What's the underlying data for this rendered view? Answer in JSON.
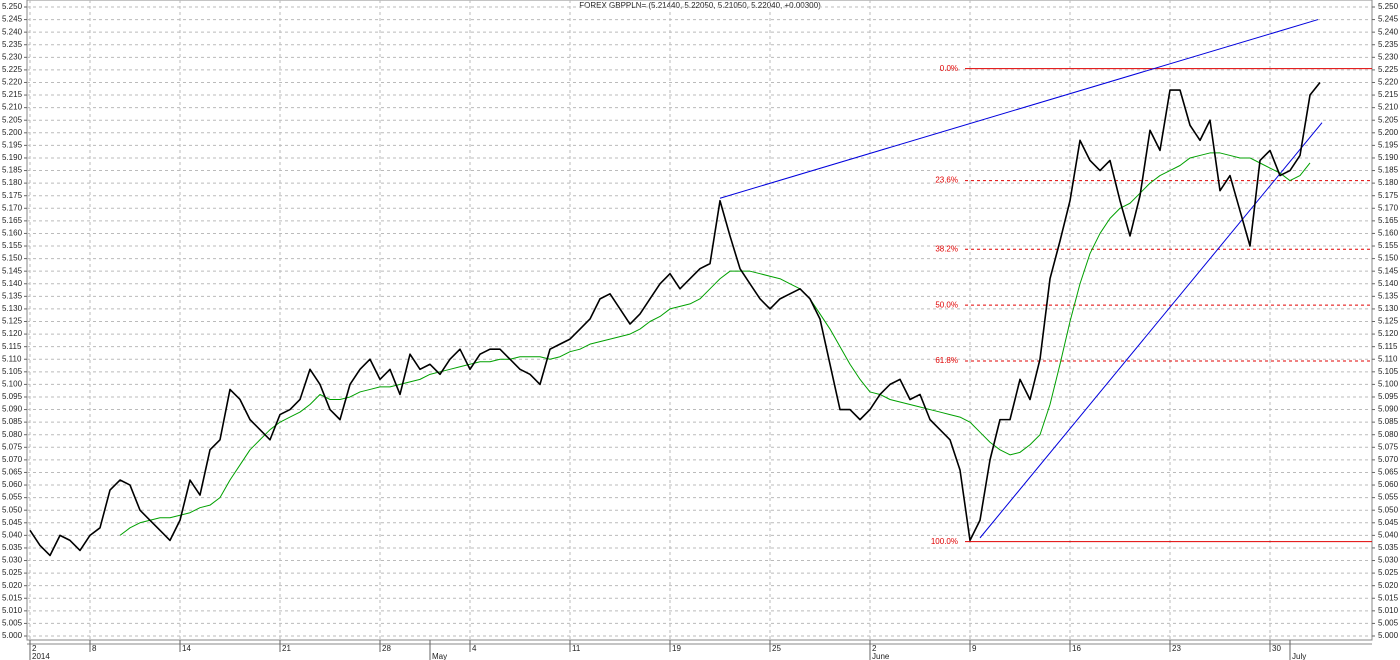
{
  "chart_data": {
    "type": "line",
    "title": "FOREX GBPPLN= (5.21440, 5.22050, 5.21050, 5.22040, +0.00300)",
    "categories": [
      "2",
      null,
      null,
      null,
      null,
      null,
      "8",
      null,
      null,
      null,
      null,
      null,
      null,
      null,
      null,
      "14",
      null,
      null,
      null,
      null,
      null,
      null,
      null,
      null,
      null,
      "21",
      null,
      null,
      null,
      null,
      null,
      null,
      null,
      null,
      null,
      "28",
      null,
      null,
      null,
      null,
      null,
      null,
      null,
      null,
      "4",
      null,
      null,
      null,
      null,
      null,
      null,
      null,
      null,
      null,
      "11",
      null,
      null,
      null,
      null,
      null,
      null,
      null,
      null,
      null,
      "19",
      null,
      null,
      null,
      null,
      null,
      null,
      null,
      null,
      null,
      "25",
      null,
      null,
      null,
      null,
      null,
      null,
      null,
      null,
      null,
      "2",
      null,
      null,
      null,
      null,
      null,
      null,
      null,
      null,
      null,
      "9",
      null,
      null,
      null,
      null,
      null,
      null,
      null,
      null,
      null,
      "16",
      null,
      null,
      null,
      null,
      null,
      null,
      null,
      null,
      null,
      "23",
      null,
      null,
      null,
      null,
      null,
      null,
      null,
      null,
      null,
      "30",
      null,
      null,
      null,
      null,
      null,
      null,
      null,
      null,
      null,
      null
    ],
    "month_categories": [
      "2014",
      null,
      null,
      null,
      null,
      null,
      null,
      null,
      null,
      null,
      null,
      null,
      null,
      null,
      null,
      null,
      null,
      null,
      null,
      null,
      null,
      null,
      null,
      null,
      null,
      null,
      null,
      null,
      null,
      null,
      null,
      null,
      null,
      null,
      null,
      null,
      null,
      null,
      null,
      null,
      "May",
      null,
      null,
      null,
      null,
      null,
      null,
      null,
      null,
      null,
      null,
      null,
      null,
      null,
      null,
      null,
      null,
      null,
      null,
      null,
      null,
      null,
      null,
      null,
      null,
      null,
      null,
      null,
      null,
      null,
      null,
      null,
      null,
      null,
      null,
      null,
      null,
      null,
      null,
      null,
      null,
      null,
      null,
      null,
      "June",
      null,
      null,
      null,
      null,
      null,
      null,
      null,
      null,
      null,
      null,
      null,
      null,
      null,
      null,
      null,
      null,
      null,
      null,
      null,
      null,
      null,
      null,
      null,
      null,
      null,
      null,
      null,
      null,
      null,
      null,
      null,
      null,
      null,
      null,
      null,
      null,
      null,
      null,
      null,
      null,
      null,
      "July",
      null,
      null,
      null,
      null,
      null,
      null,
      null,
      null
    ],
    "series": [
      {
        "color": "#000000",
        "values": [
          5.042,
          5.036,
          5.032,
          5.04,
          5.038,
          5.034,
          5.04,
          5.043,
          5.058,
          5.062,
          5.06,
          5.05,
          5.046,
          5.042,
          5.038,
          5.046,
          5.062,
          5.056,
          5.074,
          5.078,
          5.098,
          5.094,
          5.086,
          5.082,
          5.078,
          5.088,
          5.09,
          5.094,
          5.106,
          5.1,
          5.09,
          5.086,
          5.1,
          5.106,
          5.11,
          5.102,
          5.106,
          5.096,
          5.112,
          5.106,
          5.108,
          5.104,
          5.11,
          5.114,
          5.106,
          5.112,
          5.114,
          5.114,
          5.11,
          5.106,
          5.104,
          5.1,
          5.114,
          5.116,
          5.118,
          5.122,
          5.126,
          5.134,
          5.136,
          5.13,
          5.124,
          5.128,
          5.134,
          5.14,
          5.144,
          5.138,
          5.142,
          5.146,
          5.148,
          5.173,
          5.159,
          5.146,
          5.14,
          5.134,
          5.13,
          5.134,
          5.136,
          5.138,
          5.134,
          5.126,
          5.108,
          5.09,
          5.09,
          5.086,
          5.09,
          5.096,
          5.1,
          5.102,
          5.094,
          5.096,
          5.086,
          5.082,
          5.078,
          5.066,
          5.038,
          5.046,
          5.07,
          5.086,
          5.086,
          5.102,
          5.094,
          5.11,
          5.142,
          5.157,
          5.173,
          5.197,
          5.189,
          5.185,
          5.189,
          5.173,
          5.159,
          5.175,
          5.201,
          5.193,
          5.217,
          5.217,
          5.203,
          5.197,
          5.205,
          5.177,
          5.183,
          5.169,
          5.155,
          5.189,
          5.193,
          5.183,
          5.185,
          5.191,
          5.215,
          5.22,
          null,
          null,
          null,
          null,
          null
        ]
      },
      {
        "color": "#00a000",
        "values": [
          null,
          null,
          null,
          null,
          null,
          null,
          null,
          null,
          null,
          5.04,
          5.043,
          5.045,
          5.046,
          5.047,
          5.047,
          5.048,
          5.049,
          5.051,
          5.052,
          5.055,
          5.062,
          5.068,
          5.074,
          5.078,
          5.082,
          5.085,
          5.087,
          5.089,
          5.092,
          5.096,
          5.094,
          5.094,
          5.095,
          5.097,
          5.098,
          5.099,
          5.099,
          5.1,
          5.101,
          5.102,
          5.104,
          5.105,
          5.106,
          5.107,
          5.108,
          5.109,
          5.109,
          5.11,
          5.11,
          5.111,
          5.111,
          5.111,
          5.11,
          5.111,
          5.113,
          5.114,
          5.116,
          5.117,
          5.118,
          5.119,
          5.12,
          5.122,
          5.125,
          5.127,
          5.13,
          5.131,
          5.132,
          5.134,
          5.138,
          5.142,
          5.145,
          5.145,
          5.145,
          5.144,
          5.143,
          5.142,
          5.14,
          5.138,
          5.134,
          5.128,
          5.122,
          5.115,
          5.108,
          5.102,
          5.097,
          5.096,
          5.094,
          5.093,
          5.092,
          5.091,
          5.09,
          5.089,
          5.088,
          5.087,
          5.085,
          5.081,
          5.077,
          5.074,
          5.072,
          5.073,
          5.076,
          5.08,
          5.092,
          5.108,
          5.125,
          5.14,
          5.152,
          5.16,
          5.166,
          5.17,
          5.172,
          5.176,
          5.18,
          5.183,
          5.185,
          5.187,
          5.19,
          5.191,
          5.192,
          5.192,
          5.191,
          5.19,
          5.19,
          5.188,
          5.186,
          5.184,
          5.181,
          5.183,
          5.188,
          null,
          null,
          null,
          null,
          null,
          null
        ]
      }
    ],
    "fib_color": "#e00000",
    "fib_levels": [
      {
        "label": "0.0%",
        "value": 5.2255,
        "dashed": false
      },
      {
        "label": "23.6%",
        "value": 5.181,
        "dashed": true
      },
      {
        "label": "38.2%",
        "value": 5.1537,
        "dashed": true
      },
      {
        "label": "50.0%",
        "value": 5.1315,
        "dashed": true
      },
      {
        "label": "61.8%",
        "value": 5.1093,
        "dashed": true
      },
      {
        "label": "100.0%",
        "value": 5.0375,
        "dashed": false
      }
    ],
    "trendlines": [
      {
        "color": "#0000dd",
        "x": [
          69,
          128.8
        ],
        "y": [
          5.174,
          5.245
        ]
      },
      {
        "color": "#0000dd",
        "x": [
          95,
          129.2
        ],
        "y": [
          5.039,
          5.204
        ]
      }
    ],
    "ylim": [
      5,
      5.25
    ],
    "yticks": [
      {
        "value": 5,
        "label": "5.000"
      },
      5.005,
      {
        "value": 5.01,
        "label": "5.010"
      },
      5.015,
      {
        "value": 5.02,
        "label": "5.020"
      },
      5.025,
      {
        "value": 5.03,
        "label": "5.030"
      },
      5.035,
      {
        "value": 5.04,
        "label": "5.040"
      },
      5.045,
      {
        "value": 5.05,
        "label": "5.050"
      },
      5.055,
      {
        "value": 5.06,
        "label": "5.060"
      },
      5.065,
      {
        "value": 5.07,
        "label": "5.070"
      },
      5.075,
      {
        "value": 5.08,
        "label": "5.080"
      },
      5.085,
      {
        "value": 5.09,
        "label": "5.090"
      },
      5.095,
      {
        "value": 5.1,
        "label": "5.100"
      },
      5.105,
      {
        "value": 5.11,
        "label": "5.110"
      },
      5.115,
      {
        "value": 5.12,
        "label": "5.120"
      },
      5.125,
      {
        "value": 5.13,
        "label": "5.130"
      },
      5.135,
      {
        "value": 5.14,
        "label": "5.140"
      },
      5.145,
      {
        "value": 5.15,
        "label": "5.150"
      },
      5.155,
      {
        "value": 5.16,
        "label": "5.160"
      },
      5.165,
      {
        "value": 5.17,
        "label": "5.170"
      },
      5.175,
      {
        "value": 5.18,
        "label": "5.180"
      },
      5.185,
      {
        "value": 5.19,
        "label": "5.190"
      },
      5.195,
      {
        "value": 5.2,
        "label": "5.200"
      },
      5.205,
      {
        "value": 5.21,
        "label": "5.210"
      },
      5.215,
      {
        "value": 5.22,
        "label": "5.220"
      },
      5.225,
      {
        "value": 5.23,
        "label": "5.230"
      },
      5.235,
      {
        "value": 5.24,
        "label": "5.240"
      },
      5.245,
      {
        "value": 5.25,
        "label": "5.250"
      }
    ],
    "grid": true
  }
}
